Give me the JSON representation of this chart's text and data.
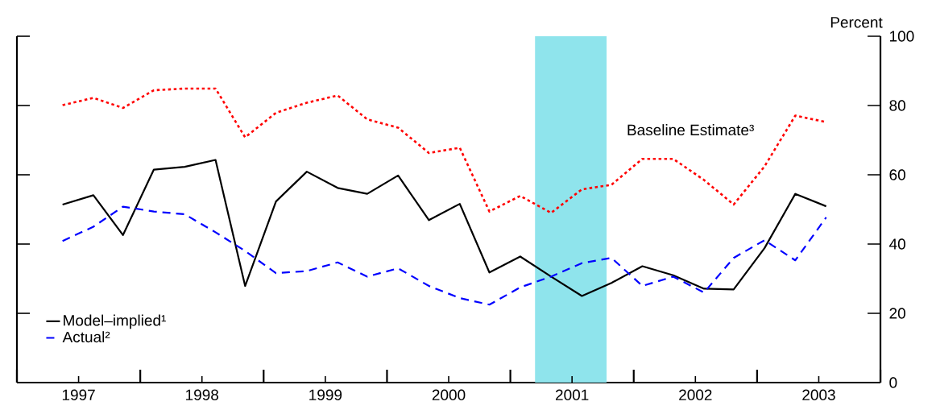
{
  "chart_data": {
    "type": "line",
    "ylabel": "Percent",
    "x": [
      1997.37,
      1997.62,
      1997.86,
      1998.11,
      1998.36,
      1998.61,
      1998.85,
      1999.1,
      1999.35,
      1999.6,
      1999.84,
      2000.09,
      2000.34,
      2000.59,
      2000.83,
      2001.08,
      2001.33,
      2001.58,
      2001.82,
      2002.07,
      2002.32,
      2002.57,
      2002.81,
      2003.06,
      2003.31,
      2003.56
    ],
    "series": [
      {
        "name": "Model–implied¹",
        "color": "#000000",
        "line_style": "solid",
        "values": [
          51.4,
          54.1,
          42.6,
          61.5,
          62.3,
          64.3,
          27.9,
          52.3,
          60.9,
          56.2,
          54.5,
          59.8,
          46.9,
          51.6,
          31.8,
          36.4,
          30.6,
          25.0,
          28.8,
          33.6,
          31.0,
          27.1,
          26.9,
          38.8,
          54.5,
          50.9
        ]
      },
      {
        "name": "Actual²",
        "color": "#0000ff",
        "line_style": "dashed",
        "values": [
          40.9,
          45.0,
          50.8,
          49.4,
          48.6,
          43.4,
          38.0,
          31.6,
          32.2,
          34.7,
          30.6,
          33.0,
          27.9,
          24.4,
          22.5,
          27.5,
          30.6,
          34.5,
          36.0,
          27.9,
          30.6,
          26.0,
          36.0,
          41.1,
          35.3,
          47.7
        ]
      },
      {
        "color": "#ff0000",
        "line_style": "dotted",
        "values": [
          80.1,
          82.2,
          79.3,
          84.4,
          84.9,
          84.9,
          70.8,
          77.9,
          80.8,
          82.9,
          76.0,
          73.6,
          66.3,
          67.8,
          49.4,
          53.9,
          49.0,
          55.8,
          57.1,
          64.6,
          64.6,
          58.5,
          51.4,
          62.4,
          77.1,
          75.2
        ]
      }
    ],
    "annotations": [
      "Baseline Estimate³"
    ],
    "bands": [
      {
        "axis": "x",
        "from": 2001.2,
        "to": 2001.78,
        "color": "#8fe4ec"
      }
    ],
    "xlim": [
      1997,
      2004
    ],
    "xticks": [
      {
        "value": 1997,
        "label": null
      },
      {
        "value": 1997.5,
        "label": "1997"
      },
      {
        "value": 1998,
        "label": null
      },
      {
        "value": 1998.5,
        "label": "1998"
      },
      {
        "value": 1999,
        "label": null
      },
      {
        "value": 1999.5,
        "label": "1999"
      },
      {
        "value": 2000,
        "label": null
      },
      {
        "value": 2000.5,
        "label": "2000"
      },
      {
        "value": 2001,
        "label": null
      },
      {
        "value": 2001.5,
        "label": "2001"
      },
      {
        "value": 2002,
        "label": null
      },
      {
        "value": 2002.5,
        "label": "2002"
      },
      {
        "value": 2003,
        "label": null
      },
      {
        "value": 2003.5,
        "label": "2003"
      },
      {
        "value": 2004,
        "label": null
      }
    ],
    "ylim": [
      0,
      100
    ],
    "yticks": [
      0,
      20,
      40,
      60,
      80,
      100
    ],
    "legend": "bottom left",
    "grid": false
  }
}
